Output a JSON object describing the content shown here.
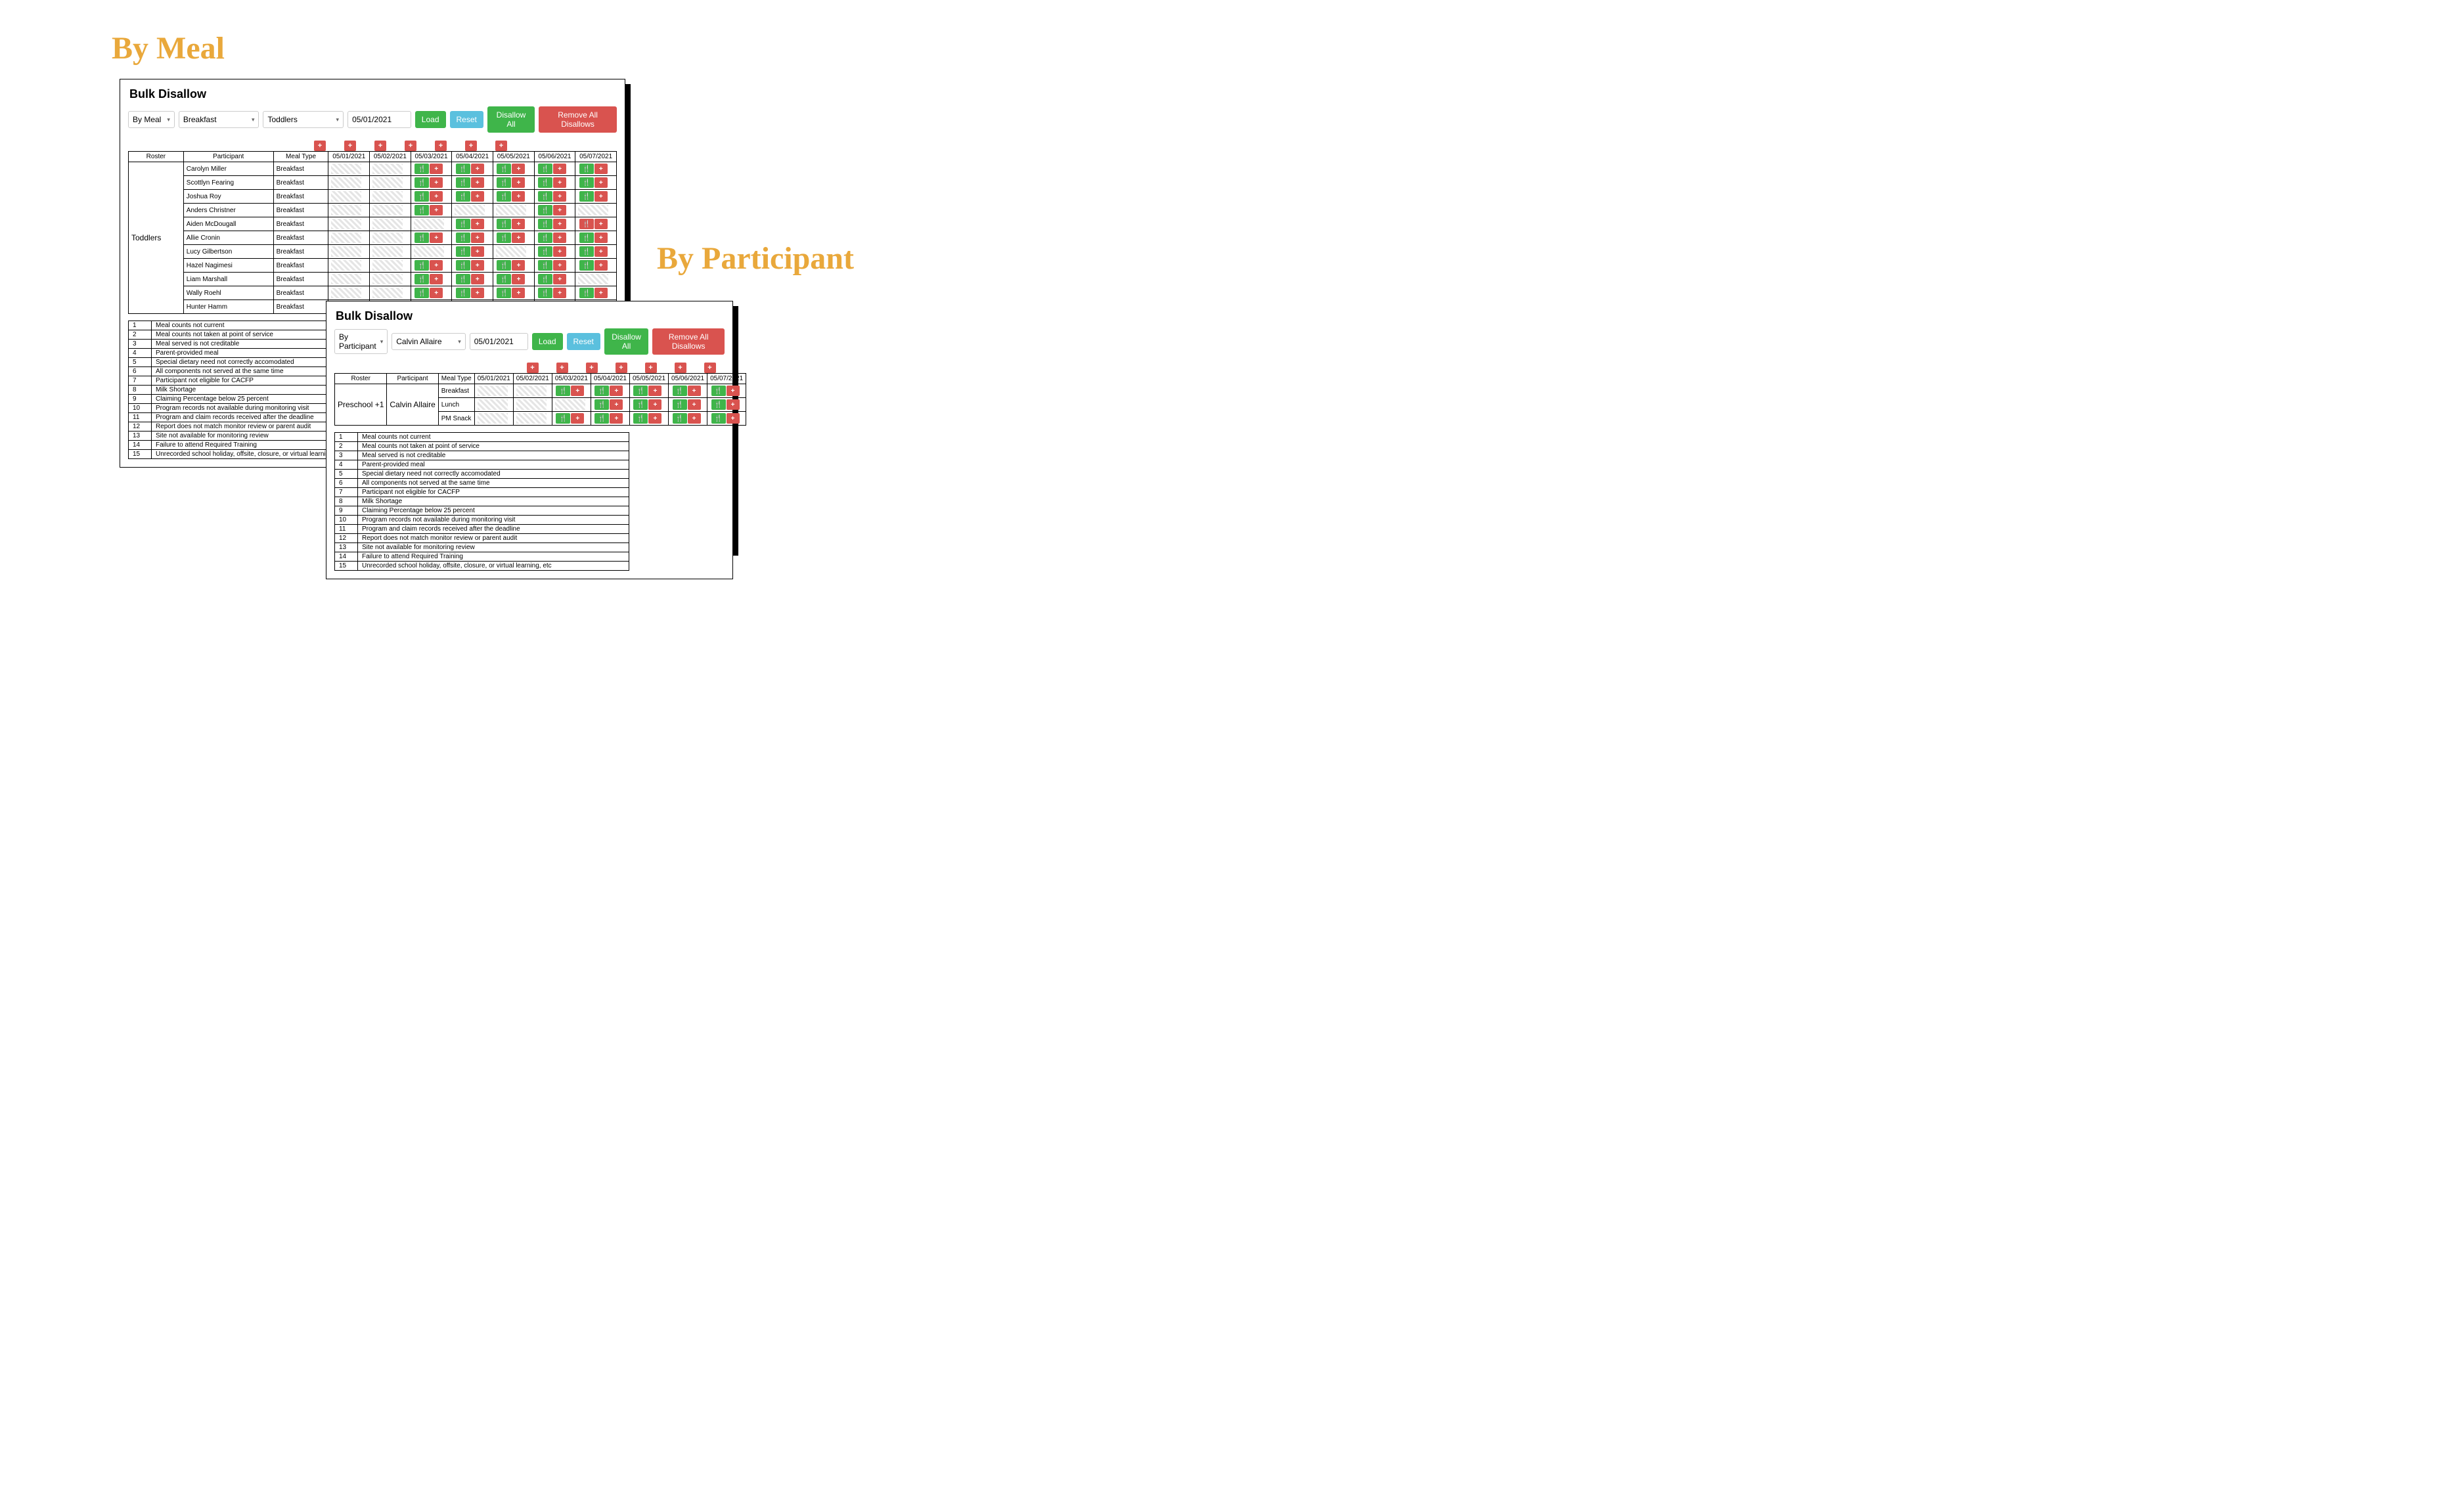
{
  "labels": {
    "byMeal": "By Meal",
    "byParticipant": "By Participant"
  },
  "buttons": {
    "load": "Load",
    "reset": "Reset",
    "disallowAll": "Disallow All",
    "removeAll": "Remove All Disallows"
  },
  "panelTitle": "Bulk Disallow",
  "headers": {
    "roster": "Roster",
    "participant": "Participant",
    "mealType": "Meal Type"
  },
  "meal": {
    "mode": "By Meal",
    "mealSel": "Breakfast",
    "rosterSel": "Toddlers",
    "date": "05/01/2021",
    "dates": [
      "05/01/2021",
      "05/02/2021",
      "05/03/2021",
      "05/04/2021",
      "05/05/2021",
      "05/06/2021",
      "05/07/2021"
    ],
    "roster": "Toddlers",
    "rows": [
      {
        "name": "Carolyn Miller",
        "type": "Breakfast",
        "cells": [
          "h",
          "h",
          "m",
          "m",
          "m",
          "m",
          "m"
        ]
      },
      {
        "name": "Scottlyn Fearing",
        "type": "Breakfast",
        "cells": [
          "h",
          "h",
          "m",
          "m",
          "m",
          "m",
          "m"
        ]
      },
      {
        "name": "Joshua Roy",
        "type": "Breakfast",
        "cells": [
          "h",
          "h",
          "m",
          "m",
          "m",
          "m",
          "m"
        ]
      },
      {
        "name": "Anders Christner",
        "type": "Breakfast",
        "cells": [
          "h",
          "h",
          "m",
          "h",
          "h",
          "m",
          "h"
        ]
      },
      {
        "name": "Aiden McDougall",
        "type": "Breakfast",
        "cells": [
          "h",
          "h",
          "h",
          "m",
          "m",
          "m",
          "b"
        ]
      },
      {
        "name": "Allie Cronin",
        "type": "Breakfast",
        "cells": [
          "h",
          "h",
          "m",
          "m",
          "m",
          "m",
          "m"
        ]
      },
      {
        "name": "Lucy Gilbertson",
        "type": "Breakfast",
        "cells": [
          "h",
          "h",
          "h",
          "m",
          "h",
          "m",
          "m"
        ]
      },
      {
        "name": "Hazel Nagimesi",
        "type": "Breakfast",
        "cells": [
          "h",
          "h",
          "m",
          "m",
          "m",
          "m",
          "m"
        ]
      },
      {
        "name": "Liam Marshall",
        "type": "Breakfast",
        "cells": [
          "h",
          "h",
          "m",
          "m",
          "m",
          "m",
          "h"
        ]
      },
      {
        "name": "Wally Roehl",
        "type": "Breakfast",
        "cells": [
          "h",
          "h",
          "m",
          "m",
          "m",
          "m",
          "m"
        ]
      },
      {
        "name": "Hunter Hamm",
        "type": "Breakfast",
        "cells": [
          "h",
          "h",
          "m",
          "m",
          "m",
          "m",
          "m"
        ]
      }
    ]
  },
  "part": {
    "mode": "By Participant",
    "participantSel": "Calvin Allaire",
    "date": "05/01/2021",
    "dates": [
      "05/01/2021",
      "05/02/2021",
      "05/03/2021",
      "05/04/2021",
      "05/05/2021",
      "05/06/2021",
      "05/07/2021"
    ],
    "roster": "Preschool +1",
    "participant": "Calvin Allaire",
    "rows": [
      {
        "type": "Breakfast",
        "cells": [
          "h",
          "h",
          "m",
          "m",
          "m",
          "m",
          "m"
        ]
      },
      {
        "type": "Lunch",
        "cells": [
          "h",
          "h",
          "h",
          "m",
          "m",
          "m",
          "m"
        ]
      },
      {
        "type": "PM Snack",
        "cells": [
          "h",
          "h",
          "m",
          "m",
          "m",
          "m",
          "m"
        ]
      }
    ]
  },
  "reasons": [
    "Meal counts not current",
    "Meal counts not taken at point of service",
    "Meal served is not creditable",
    "Parent-provided meal",
    "Special dietary need not correctly accomodated",
    "All components not served at the same time",
    "Participant not eligible for CACFP",
    "Milk Shortage",
    "Claiming Percentage below 25 percent",
    "Program records not available during monitoring visit",
    "Program and claim records received after the deadline",
    "Report does not match monitor review or parent audit",
    "Site not available for monitoring review",
    "Failure to attend Required Training",
    "Unrecorded school holiday, offsite, closure, or virtual learning, etc"
  ],
  "colors": {
    "accent": "#E9A83B",
    "green": "#3FB54A",
    "blue": "#5BC0DE",
    "red": "#D9534F"
  }
}
